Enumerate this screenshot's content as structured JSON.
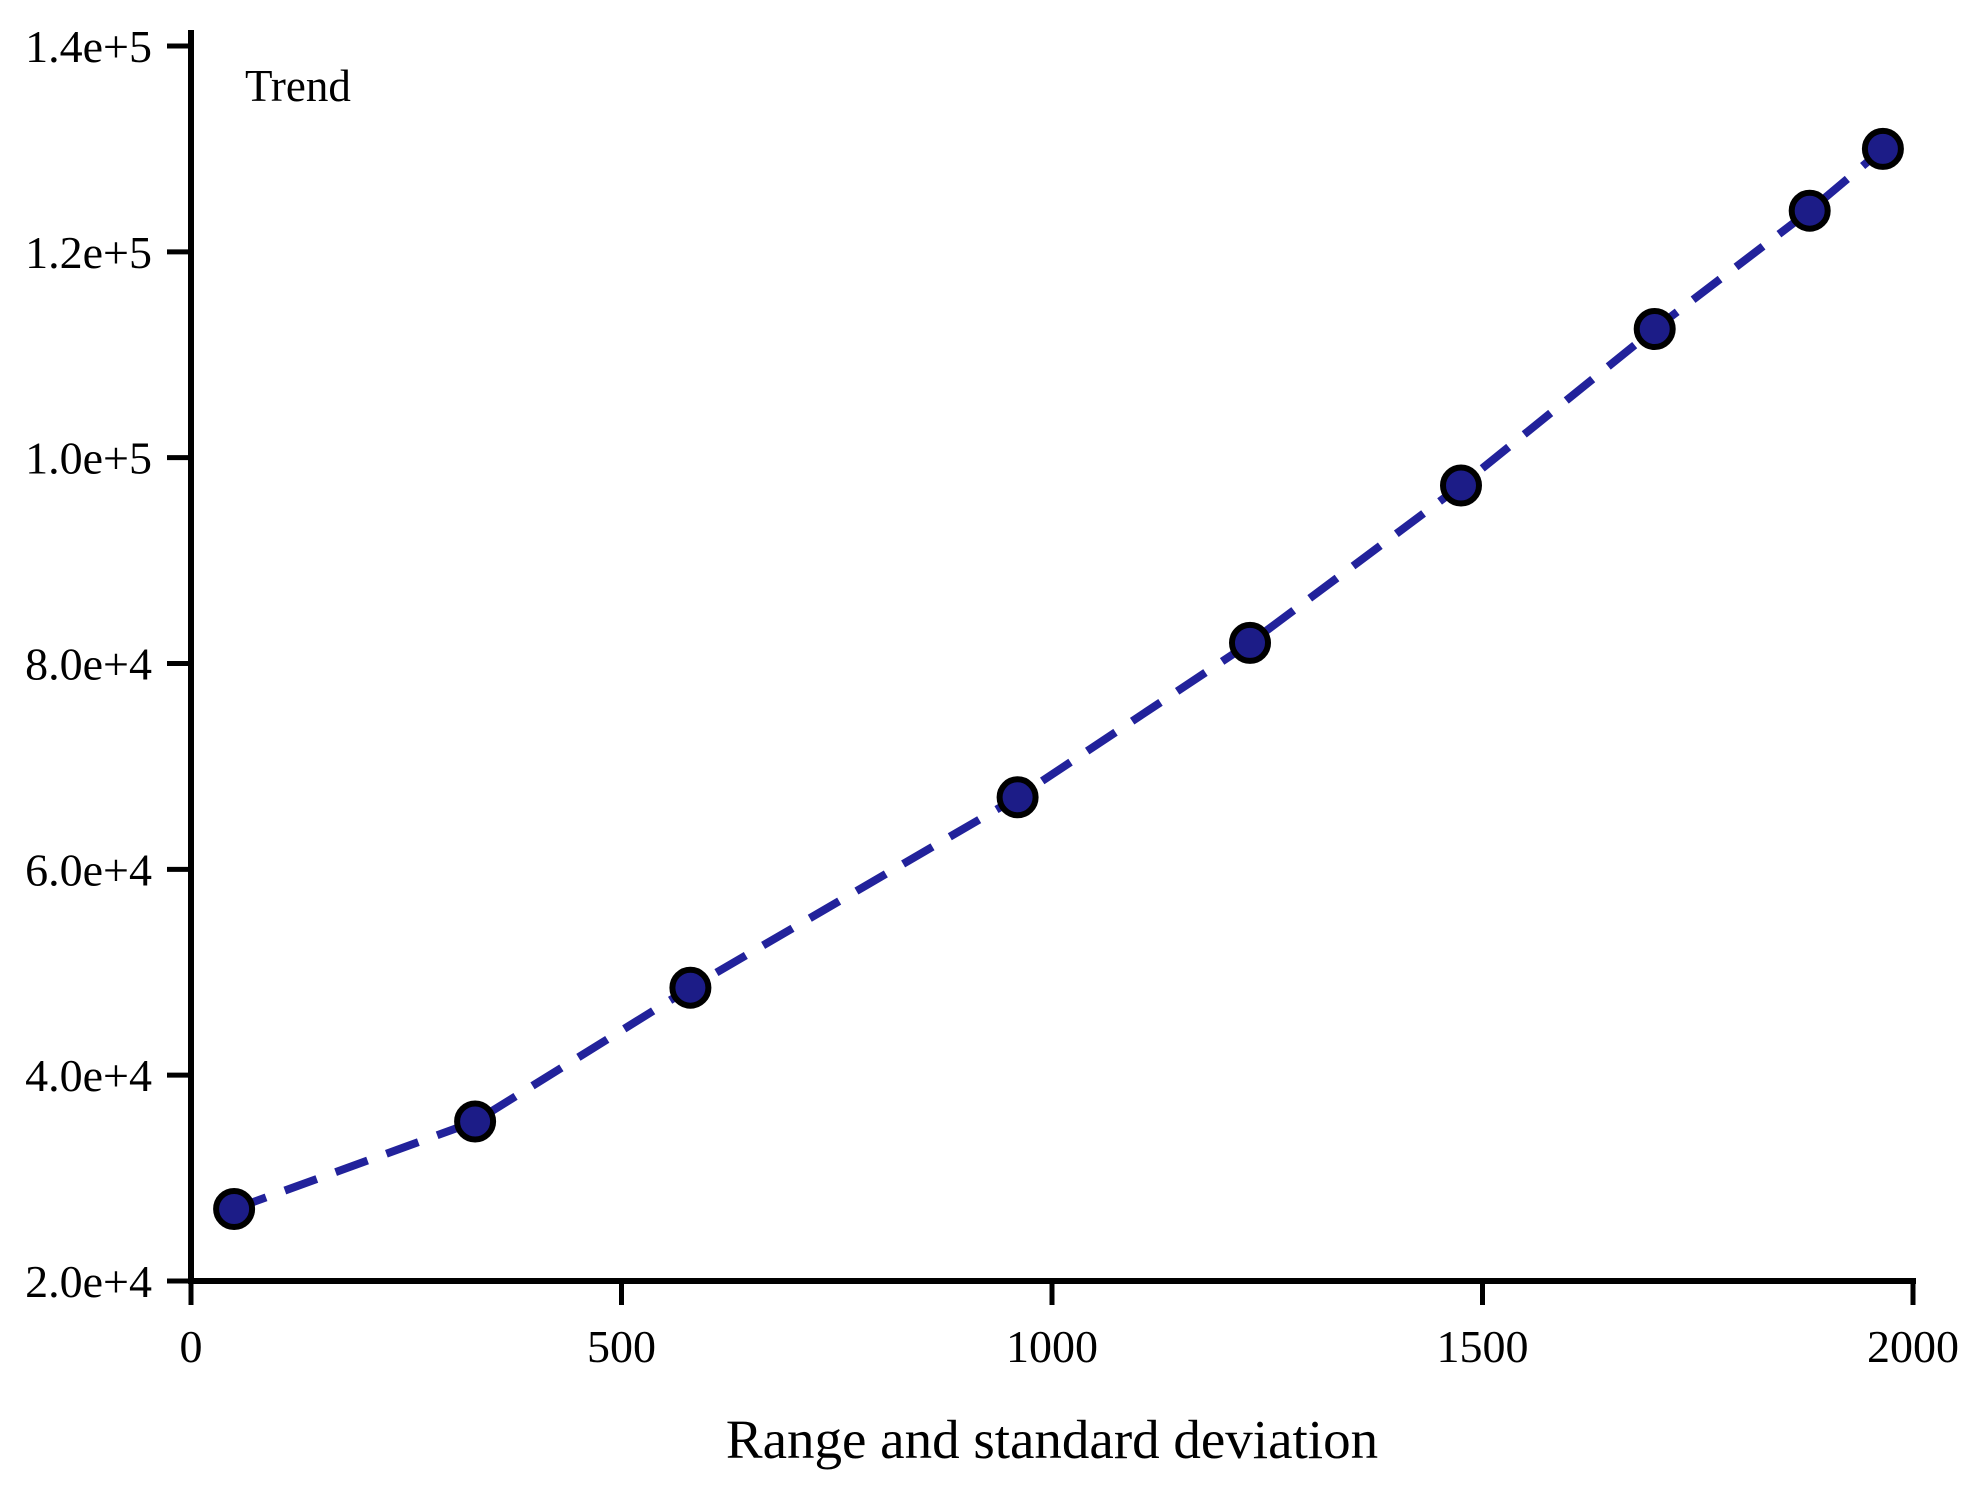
{
  "figure": {
    "annotation": "Trend",
    "xlabel": "Range and standard deviation"
  },
  "chart_data": {
    "type": "line",
    "subtype": "scatter-with-dashed-line",
    "title": "",
    "annotation": "Trend",
    "xlabel": "Range and standard deviation",
    "ylabel": "",
    "xlim": [
      0,
      2000
    ],
    "ylim": [
      20000,
      140000
    ],
    "x_ticks": [
      0,
      500,
      1000,
      1500,
      2000
    ],
    "x_tick_labels": [
      "0",
      "500",
      "1000",
      "1500",
      "2000"
    ],
    "y_ticks": [
      20000,
      40000,
      60000,
      80000,
      100000,
      120000,
      140000
    ],
    "y_tick_labels": [
      "2.0e+4",
      "4.0e+4",
      "6.0e+4",
      "8.0e+4",
      "1.0e+5",
      "1.2e+5",
      "1.4e+5"
    ],
    "grid": "off",
    "legend_position": "none (text annotation at top-left inside plot)",
    "series": [
      {
        "name": "Trend",
        "marker": "filled-circle",
        "line_style": "dashed",
        "x": [
          50,
          330,
          580,
          960,
          1230,
          1475,
          1700,
          1880,
          1965
        ],
        "y": [
          27000,
          35500,
          48500,
          67000,
          82000,
          97300,
          112500,
          124000,
          130000
        ]
      }
    ],
    "colors": {
      "line": "#22229B",
      "marker_fill": "#1C1C87",
      "marker_stroke": "#000000",
      "axis": "#000000",
      "text": "#000000",
      "background": "#FFFFFF"
    }
  }
}
